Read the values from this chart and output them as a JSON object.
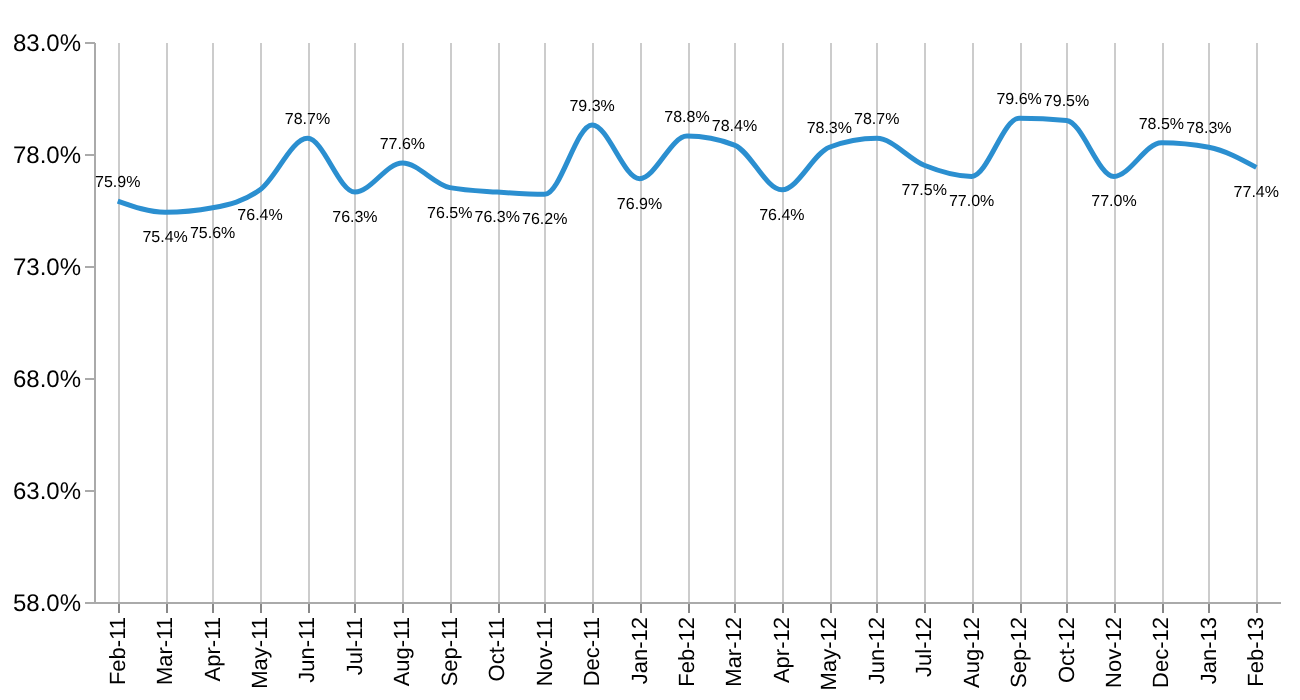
{
  "chart_data": {
    "type": "line",
    "categories": [
      "Feb-11",
      "Mar-11",
      "Apr-11",
      "May-11",
      "Jun-11",
      "Jul-11",
      "Aug-11",
      "Sep-11",
      "Oct-11",
      "Nov-11",
      "Dec-11",
      "Jan-12",
      "Feb-12",
      "Mar-12",
      "Apr-12",
      "May-12",
      "Jun-12",
      "Jul-12",
      "Aug-12",
      "Sep-12",
      "Oct-12",
      "Nov-12",
      "Dec-12",
      "Jan-13",
      "Feb-13"
    ],
    "series": [
      {
        "color": "#2b8fd0",
        "values": [
          75.9,
          75.4,
          75.6,
          76.4,
          78.7,
          76.3,
          77.6,
          76.5,
          76.3,
          76.2,
          79.3,
          76.9,
          78.8,
          78.4,
          76.4,
          78.3,
          78.7,
          77.5,
          77.0,
          79.6,
          79.5,
          77.0,
          78.5,
          78.3,
          77.4
        ],
        "value_labels": [
          "75.9%",
          "75.4%",
          "75.6%",
          "76.4%",
          "78.7%",
          "76.3%",
          "77.6%",
          "76.5%",
          "76.3%",
          "76.2%",
          "79.3%",
          "76.9%",
          "78.8%",
          "78.4%",
          "76.4%",
          "78.3%",
          "78.7%",
          "77.5%",
          "77.0%",
          "79.6%",
          "79.5%",
          "77.0%",
          "78.5%",
          "78.3%",
          "77.4%"
        ]
      }
    ],
    "ylim": [
      58,
      83
    ],
    "yticks": [
      {
        "value": 58,
        "label": "58.0%"
      },
      {
        "value": 63,
        "label": "63.0%"
      },
      {
        "value": 68,
        "label": "68.0%"
      },
      {
        "value": 73,
        "label": "73.0%"
      },
      {
        "value": 78,
        "label": "78.0%"
      },
      {
        "value": 83,
        "label": "83.0%"
      }
    ],
    "grid": "x",
    "marker": "none",
    "line_style": "solid"
  }
}
